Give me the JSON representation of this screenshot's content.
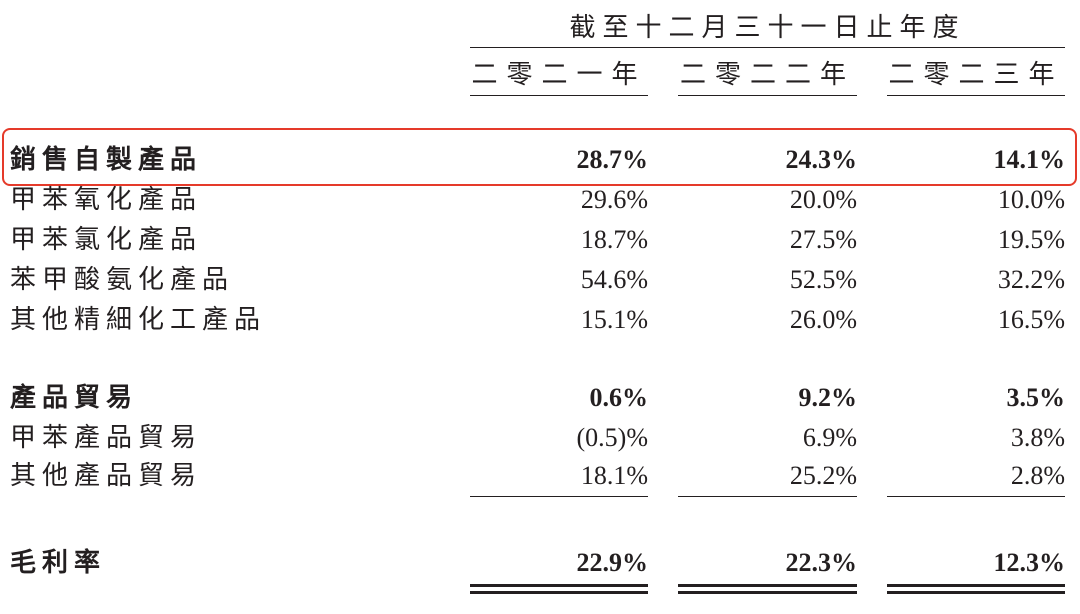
{
  "header": {
    "title": "截至十二月三十一日止年度",
    "columns": [
      "二零二一年",
      "二零二二年",
      "二零二三年"
    ]
  },
  "rows": [
    {
      "label": "銷售自製產品",
      "values": [
        "28.7%",
        "24.3%",
        "14.1%"
      ],
      "bold": true
    },
    {
      "label": "甲苯氧化產品",
      "values": [
        "29.6%",
        "20.0%",
        "10.0%"
      ],
      "bold": false
    },
    {
      "label": "甲苯氯化產品",
      "values": [
        "18.7%",
        "27.5%",
        "19.5%"
      ],
      "bold": false
    },
    {
      "label": "苯甲酸氨化產品",
      "values": [
        "54.6%",
        "52.5%",
        "32.2%"
      ],
      "bold": false
    },
    {
      "label": "其他精細化工產品",
      "values": [
        "15.1%",
        "26.0%",
        "16.5%"
      ],
      "bold": false
    },
    {
      "label": "產品貿易",
      "values": [
        "0.6%",
        "9.2%",
        "3.5%"
      ],
      "bold": true
    },
    {
      "label": "甲苯產品貿易",
      "values": [
        "(0.5)%",
        "6.9%",
        "3.8%"
      ],
      "bold": false
    },
    {
      "label": "其他產品貿易",
      "values": [
        "18.1%",
        "25.2%",
        "2.8%"
      ],
      "bold": false
    },
    {
      "label": "毛利率",
      "values": [
        "22.9%",
        "22.3%",
        "12.3%"
      ],
      "bold": true
    }
  ]
}
